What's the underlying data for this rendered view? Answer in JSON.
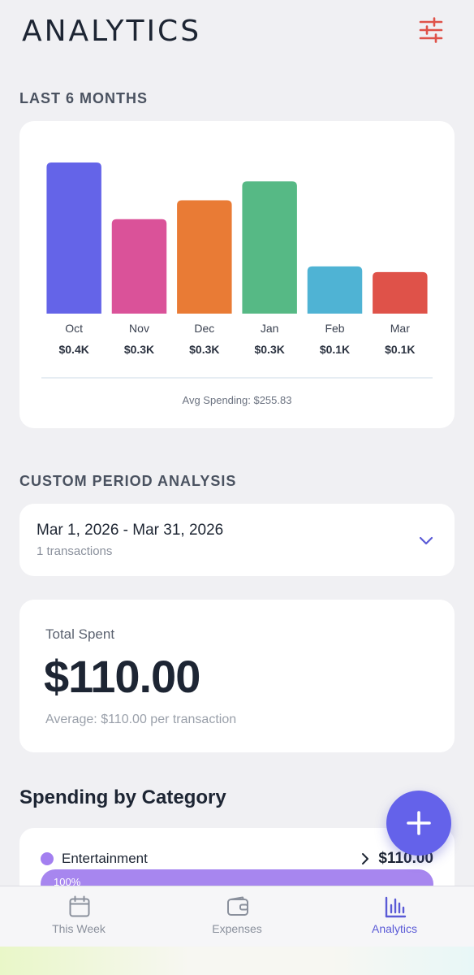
{
  "header": {
    "title": "ANALYTICS",
    "filter_icon": "sliders-icon"
  },
  "sections": {
    "last_six_months": "LAST 6 MONTHS",
    "custom_period": "CUSTOM PERIOD ANALYSIS",
    "spending_by_category": "Spending by Category"
  },
  "chart_data": {
    "type": "bar",
    "categories": [
      "Oct",
      "Nov",
      "Dec",
      "Jan",
      "Feb",
      "Mar"
    ],
    "values": [
      0.4,
      0.25,
      0.3,
      0.35,
      0.125,
      0.11
    ],
    "value_labels": [
      "$0.4K",
      "$0.3K",
      "$0.3K",
      "$0.3K",
      "$0.1K",
      "$0.1K"
    ],
    "colors": [
      "#6464e8",
      "#da5299",
      "#e97b35",
      "#56b985",
      "#4fb3d4",
      "#df5249"
    ],
    "unit": "K USD",
    "footer": "Avg Spending: $255.83"
  },
  "period": {
    "range": "Mar 1, 2026 - Mar 31, 2026",
    "count": "1 transactions",
    "chevron_icon": "chevron-down-icon"
  },
  "total": {
    "label": "Total Spent",
    "value": "$110.00",
    "average": "Average: $110.00 per transaction"
  },
  "categories": [
    {
      "name": "Entertainment",
      "amount": "$110.00",
      "percent": "100%",
      "share": 1.0,
      "color": "#a786ef"
    }
  ],
  "fab": {
    "icon": "plus-icon"
  },
  "tabs": [
    {
      "label": "This Week",
      "icon": "calendar-icon",
      "active": false
    },
    {
      "label": "Expenses",
      "icon": "wallet-icon",
      "active": false
    },
    {
      "label": "Analytics",
      "icon": "bar-chart-icon",
      "active": true
    }
  ],
  "colors": {
    "accent": "#6462ea",
    "filter": "#df5249",
    "active_tab": "#5a5ad6"
  }
}
